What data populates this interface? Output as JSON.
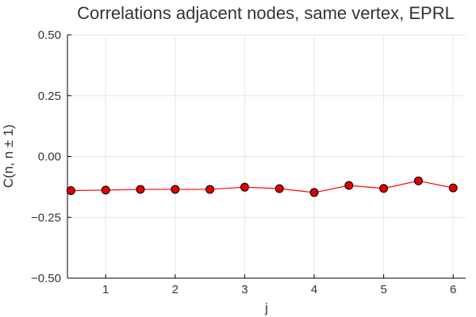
{
  "chart_data": {
    "type": "scatter",
    "title": "Correlations adjacent nodes, same vertex, EPRL",
    "xlabel": "j",
    "ylabel": "C(n, n ± 1)",
    "xlim": [
      0.45,
      6.18
    ],
    "ylim": [
      -0.5,
      0.5
    ],
    "xticks": [
      1,
      2,
      3,
      4,
      5,
      6
    ],
    "xtick_labels": [
      "1",
      "2",
      "3",
      "4",
      "5",
      "6"
    ],
    "yticks": [
      0.5,
      0.25,
      0.0,
      -0.25,
      -0.5
    ],
    "ytick_labels": [
      "0.50",
      "0.25",
      "0.00",
      "−0.25",
      "−0.50"
    ],
    "grid": true,
    "legend": "none",
    "series": [
      {
        "color": "#ff0000",
        "marker_color": "#e00000",
        "x": [
          0.5,
          1.0,
          1.5,
          2.0,
          2.5,
          3.0,
          3.5,
          4.0,
          4.5,
          5.0,
          5.5,
          6.0
        ],
        "y": [
          -0.14,
          -0.138,
          -0.135,
          -0.135,
          -0.135,
          -0.126,
          -0.132,
          -0.148,
          -0.119,
          -0.131,
          -0.1,
          -0.129
        ]
      }
    ]
  }
}
